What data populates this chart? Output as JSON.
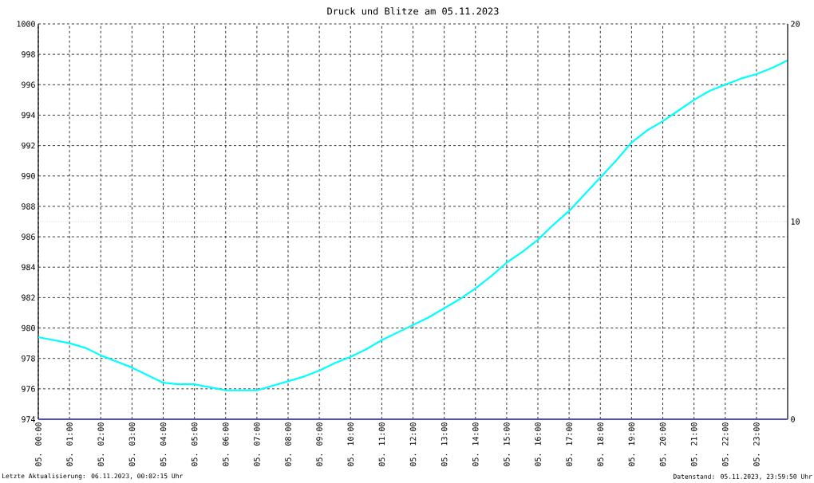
{
  "chart_data": {
    "type": "line",
    "title": "Druck und Blitze am 05.11.2023",
    "x": [
      "2023-11-05T00:00",
      "2023-11-05T00:30",
      "2023-11-05T01:00",
      "2023-11-05T01:30",
      "2023-11-05T02:00",
      "2023-11-05T02:30",
      "2023-11-05T03:00",
      "2023-11-05T03:30",
      "2023-11-05T04:00",
      "2023-11-05T04:30",
      "2023-11-05T05:00",
      "2023-11-05T05:30",
      "2023-11-05T06:00",
      "2023-11-05T06:30",
      "2023-11-05T07:00",
      "2023-11-05T07:30",
      "2023-11-05T08:00",
      "2023-11-05T08:30",
      "2023-11-05T09:00",
      "2023-11-05T09:30",
      "2023-11-05T10:00",
      "2023-11-05T10:30",
      "2023-11-05T11:00",
      "2023-11-05T11:30",
      "2023-11-05T12:00",
      "2023-11-05T12:30",
      "2023-11-05T13:00",
      "2023-11-05T13:30",
      "2023-11-05T14:00",
      "2023-11-05T14:30",
      "2023-11-05T15:00",
      "2023-11-05T15:30",
      "2023-11-05T16:00",
      "2023-11-05T16:30",
      "2023-11-05T17:00",
      "2023-11-05T17:30",
      "2023-11-05T18:00",
      "2023-11-05T18:30",
      "2023-11-05T19:00",
      "2023-11-05T19:30",
      "2023-11-05T20:00",
      "2023-11-05T20:30",
      "2023-11-05T21:00",
      "2023-11-05T21:30",
      "2023-11-05T22:00",
      "2023-11-05T22:30",
      "2023-11-05T23:00",
      "2023-11-05T23:30",
      "2023-11-06T00:00"
    ],
    "series": [
      {
        "color": "#00ffff",
        "values": [
          979.4,
          979.2,
          979.0,
          978.7,
          978.2,
          977.8,
          977.4,
          976.9,
          976.4,
          976.3,
          976.3,
          976.1,
          975.9,
          975.9,
          975.9,
          976.2,
          976.5,
          976.8,
          977.2,
          977.7,
          978.1,
          978.6,
          979.2,
          979.7,
          980.2,
          980.7,
          981.3,
          981.9,
          982.6,
          983.4,
          984.3,
          985.0,
          985.8,
          986.8,
          987.7,
          988.8,
          989.9,
          991.0,
          992.2,
          993.0,
          993.6,
          994.3,
          995.0,
          995.6,
          996.0,
          996.4,
          996.7,
          997.1,
          997.6
        ]
      },
      {
        "color": "#5050c0",
        "axis": "y2",
        "x": [
          "2023-11-05T00:00",
          "2023-11-06T00:00"
        ],
        "values": [
          0,
          0
        ]
      }
    ],
    "xlim": [
      "2023-11-05T00:00",
      "2023-11-06T00:00"
    ],
    "xticks": [
      {
        "value": "2023-11-05T00:00",
        "label": "05. 00:00"
      },
      {
        "value": "2023-11-05T01:00",
        "label": "05. 01:00"
      },
      {
        "value": "2023-11-05T02:00",
        "label": "05. 02:00"
      },
      {
        "value": "2023-11-05T03:00",
        "label": "05. 03:00"
      },
      {
        "value": "2023-11-05T04:00",
        "label": "05. 04:00"
      },
      {
        "value": "2023-11-05T05:00",
        "label": "05. 05:00"
      },
      {
        "value": "2023-11-05T06:00",
        "label": "05. 06:00"
      },
      {
        "value": "2023-11-05T07:00",
        "label": "05. 07:00"
      },
      {
        "value": "2023-11-05T08:00",
        "label": "05. 08:00"
      },
      {
        "value": "2023-11-05T09:00",
        "label": "05. 09:00"
      },
      {
        "value": "2023-11-05T10:00",
        "label": "05. 10:00"
      },
      {
        "value": "2023-11-05T11:00",
        "label": "05. 11:00"
      },
      {
        "value": "2023-11-05T12:00",
        "label": "05. 12:00"
      },
      {
        "value": "2023-11-05T13:00",
        "label": "05. 13:00"
      },
      {
        "value": "2023-11-05T14:00",
        "label": "05. 14:00"
      },
      {
        "value": "2023-11-05T15:00",
        "label": "05. 15:00"
      },
      {
        "value": "2023-11-05T16:00",
        "label": "05. 16:00"
      },
      {
        "value": "2023-11-05T17:00",
        "label": "05. 17:00"
      },
      {
        "value": "2023-11-05T18:00",
        "label": "05. 18:00"
      },
      {
        "value": "2023-11-05T19:00",
        "label": "05. 19:00"
      },
      {
        "value": "2023-11-05T20:00",
        "label": "05. 20:00"
      },
      {
        "value": "2023-11-05T21:00",
        "label": "05. 21:00"
      },
      {
        "value": "2023-11-05T22:00",
        "label": "05. 22:00"
      },
      {
        "value": "2023-11-05T23:00",
        "label": "05. 23:00"
      }
    ],
    "ylim": [
      974,
      1000
    ],
    "yticks": [
      974,
      976,
      978,
      980,
      982,
      984,
      986,
      988,
      990,
      992,
      994,
      996,
      998,
      1000
    ],
    "y2lim": [
      0,
      20
    ],
    "y2ticks": [
      0,
      10,
      20
    ],
    "grid": true,
    "ref_lines": [
      {
        "axis": "y2",
        "value": 10,
        "color": "#c0c0c0",
        "line_style": "dotted"
      }
    ],
    "annotations": [
      "Letzte Aktualisierung: 06.11.2023, 00:02:15 Uhr",
      "Datenstand: 05.11.2023, 23:59:50 Uhr"
    ]
  }
}
